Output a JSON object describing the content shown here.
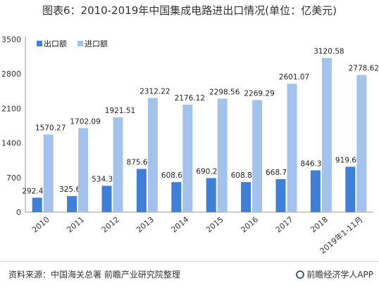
{
  "chart_data": {
    "type": "bar",
    "title": "图表6：2010-2019年中国集成电路进出口情况(单位：亿美元)",
    "categories": [
      "2010",
      "2011",
      "2012",
      "2013",
      "2014",
      "2015",
      "2016",
      "2017",
      "2018",
      "2019年1-11月"
    ],
    "series": [
      {
        "name": "出口额",
        "color": "#3f7fd8",
        "values": [
          292.45,
          325.6,
          534.34,
          875.64,
          608.65,
          690.23,
          608.84,
          668.75,
          846.36,
          919.61
        ],
        "labels": [
          "292.45",
          "325.6",
          "534.34",
          "875.64",
          "608.65",
          "690.23",
          "608.84",
          "668.75",
          "846.36",
          "919.61"
        ]
      },
      {
        "name": "进口额",
        "color": "#a4c3ec",
        "values": [
          1570.27,
          1702.09,
          1921.51,
          2312.22,
          2176.12,
          2298.56,
          2269.29,
          2601.07,
          3120.58,
          2778.62
        ],
        "labels": [
          "1570.27",
          "1702.09",
          "1921.51",
          "2312.22",
          "2176.12",
          "2298.56",
          "2269.29",
          "2601.07",
          "3120.58",
          "2778.62"
        ]
      }
    ],
    "yticks": [
      "0",
      "700",
      "1400",
      "2100",
      "2800",
      "3500"
    ],
    "ylim": [
      0,
      3500
    ],
    "legend_position": "top-left",
    "grid": false
  },
  "footer": {
    "source": "资料来源：中国海关总署 前瞻产业研究院整理",
    "brand": "前瞻经济学人APP",
    "brand_icon": "brand-logo-icon"
  }
}
